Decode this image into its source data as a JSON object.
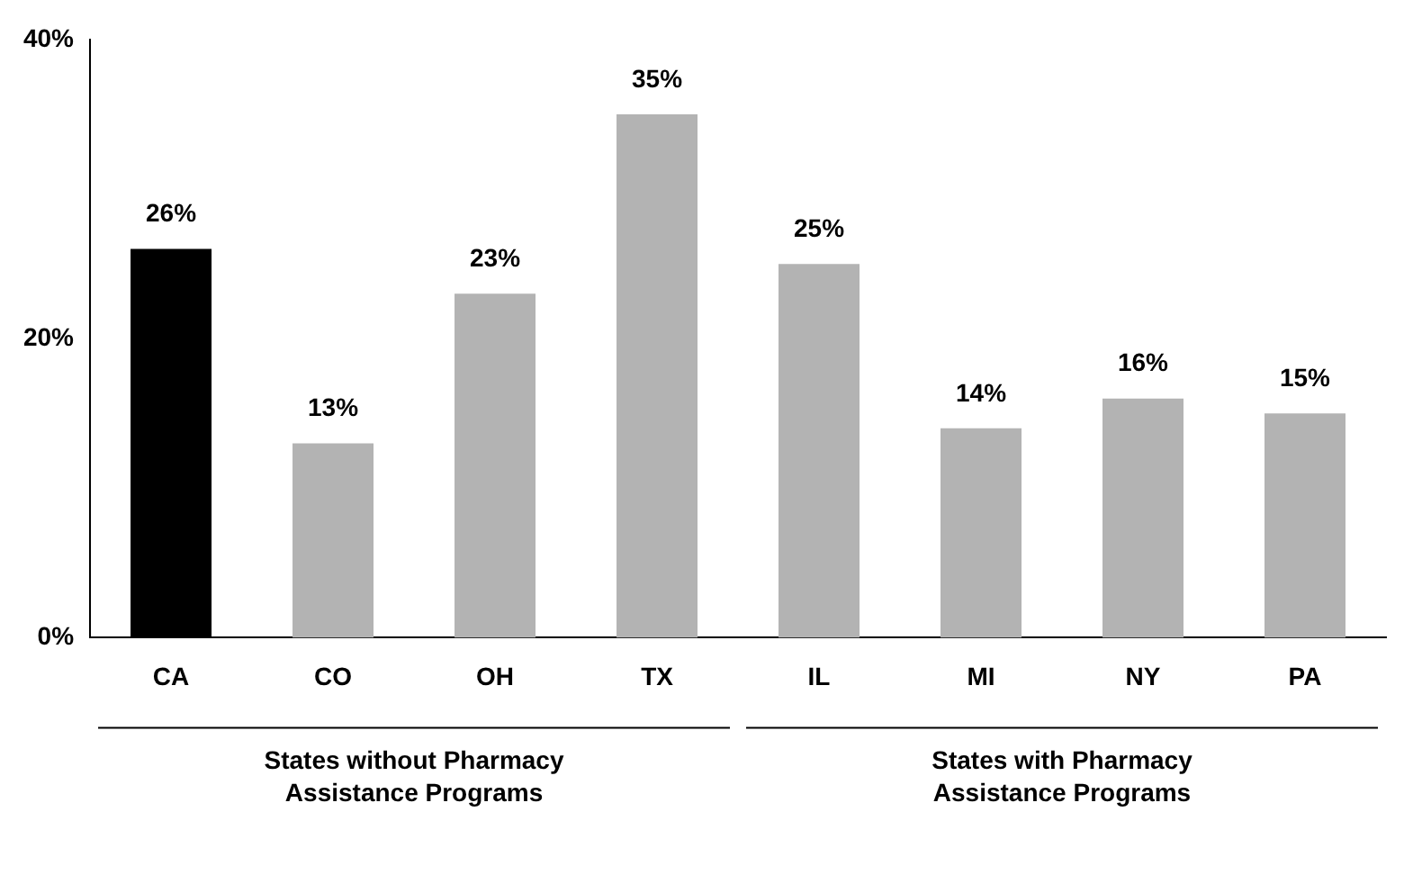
{
  "chart_data": {
    "type": "bar",
    "categories": [
      "CA",
      "CO",
      "OH",
      "TX",
      "IL",
      "MI",
      "NY",
      "PA"
    ],
    "values": [
      26,
      13,
      23,
      35,
      25,
      14,
      16,
      15
    ],
    "colors": [
      "#000000",
      "#b3b3b3",
      "#b3b3b3",
      "#b3b3b3",
      "#b3b3b3",
      "#b3b3b3",
      "#b3b3b3",
      "#b3b3b3"
    ],
    "value_labels": [
      "26%",
      "13%",
      "23%",
      "35%",
      "25%",
      "14%",
      "16%",
      "15%"
    ],
    "ylim": [
      0,
      40
    ],
    "yticks": [
      {
        "value": 0,
        "label": "0%"
      },
      {
        "value": 20,
        "label": "20%"
      },
      {
        "value": 40,
        "label": "40%"
      }
    ],
    "grid": false,
    "legend": false,
    "annotations": [
      "States without Pharmacy Assistance Programs",
      "States with Pharmacy Assistance Programs"
    ]
  }
}
